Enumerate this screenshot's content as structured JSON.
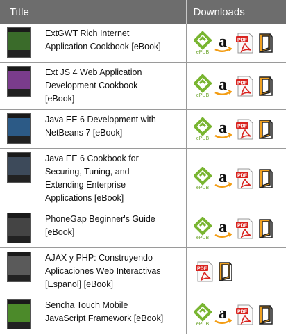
{
  "header": {
    "title_col": "Title",
    "downloads_col": "Downloads"
  },
  "icon_labels": {
    "epub": "ePUB",
    "pdf": "PDF"
  },
  "books": [
    {
      "title": "ExtGWT Rich Internet Application Cookbook [eBook]",
      "cover_color": "#3a6b2a",
      "formats": [
        "epub",
        "amazon",
        "pdf",
        "kindle"
      ]
    },
    {
      "title": "Ext JS 4 Web Application Development Cookbook [eBook]",
      "cover_color": "#7a3c8c",
      "formats": [
        "epub",
        "amazon",
        "pdf",
        "kindle"
      ]
    },
    {
      "title": "Java EE 6 Development with NetBeans 7 [eBook]",
      "cover_color": "#2c5a86",
      "formats": [
        "epub",
        "amazon",
        "pdf",
        "kindle"
      ]
    },
    {
      "title": "Java EE 6 Cookbook for Securing, Tuning, and Extending Enterprise Applications [eBook]",
      "cover_color": "#3d4a5a",
      "formats": [
        "epub",
        "amazon",
        "pdf",
        "kindle"
      ]
    },
    {
      "title": "PhoneGap Beginner's Guide [eBook]",
      "cover_color": "#444444",
      "formats": [
        "epub",
        "amazon",
        "pdf",
        "kindle"
      ]
    },
    {
      "title": "AJAX y PHP: Construyendo Aplicaciones Web Interactivas [Espanol] [eBook]",
      "cover_color": "#5a5a5a",
      "formats": [
        "pdf",
        "kindle"
      ]
    },
    {
      "title": "Sencha Touch Mobile JavaScript Framework [eBook]",
      "cover_color": "#4c8a2a",
      "formats": [
        "epub",
        "amazon",
        "pdf",
        "kindle"
      ]
    }
  ]
}
